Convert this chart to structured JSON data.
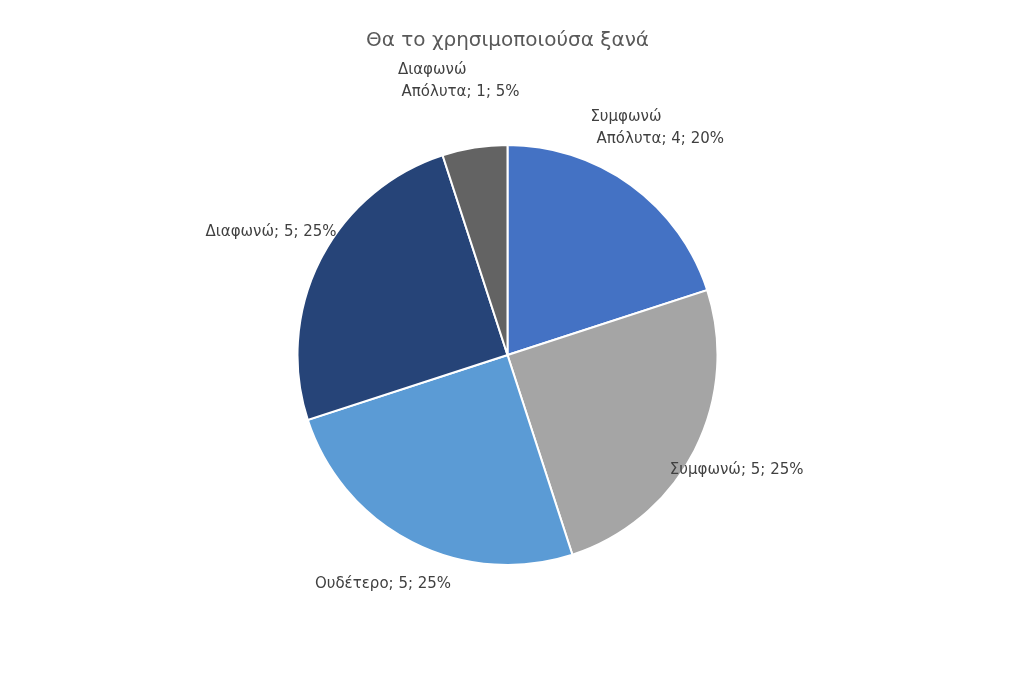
{
  "chart_data": {
    "type": "pie",
    "title": "Θα το χρησιμοποιούσα ξανά",
    "categories": [
      "Συμφωνώ Απόλυτα",
      "Συμφωνώ",
      "Ουδέτερο",
      "Διαφωνώ",
      "Διαφωνώ Απόλυτα"
    ],
    "values": [
      4,
      5,
      5,
      5,
      1
    ],
    "value_labels": [
      "; 4; 20%",
      "; 5; 25%",
      "; 5; 25%",
      "; 5; 25%",
      "; 1; 5%"
    ],
    "colors": [
      "#4472c4",
      "#a5a5a5",
      "#5b9bd5",
      "#264478",
      "#636363"
    ],
    "legend": false
  }
}
